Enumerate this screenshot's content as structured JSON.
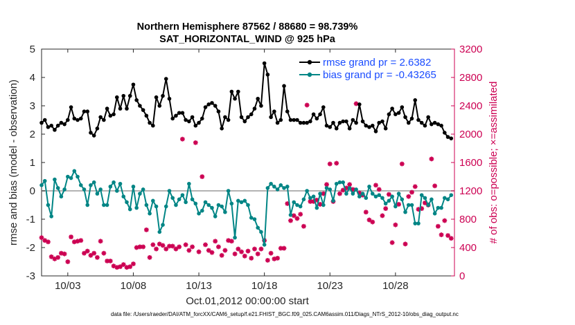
{
  "chart_data": {
    "type": "line",
    "title_line1": "Northern Hemisphere 87562 / 88680 = 98.739%",
    "title_line2": "SAT_HORIZONTAL_WIND @ 925 hPa",
    "xlabel": "Oct.01,2012 00:00:00 start",
    "ylabel_left": "rmse and bias (model - observation)",
    "ylabel_right": "# of obs: o=possible; ×=assimilated",
    "footer": "data file: /Users/raeder/DAI/ATM_forcXX/CAM6_setup/f.e21.FHIST_BGC.f09_025.CAM6assim.011/Diags_NTrS_2012-10/obs_diag_output.nc",
    "x_range": [
      1,
      32.5
    ],
    "x_ticks": [
      3,
      8,
      13,
      18,
      23,
      28
    ],
    "x_tick_labels": [
      "10/03",
      "10/08",
      "10/13",
      "10/18",
      "10/23",
      "10/28"
    ],
    "ylim_left": [
      -3,
      5
    ],
    "y_ticks_left": [
      -3,
      -2,
      -1,
      0,
      1,
      2,
      3,
      4,
      5
    ],
    "ylim_right": [
      0,
      3200
    ],
    "y_ticks_right": [
      0,
      400,
      800,
      1200,
      1600,
      2000,
      2400,
      2800,
      3200
    ],
    "legend": [
      {
        "name": "rmse grand pr = 2.6382"
      },
      {
        "name": "bias grand pr = -0.43265"
      }
    ],
    "x": [
      1.0,
      1.25,
      1.5,
      1.75,
      2.0,
      2.25,
      2.5,
      2.75,
      3.0,
      3.25,
      3.5,
      3.75,
      4.0,
      4.25,
      4.5,
      4.75,
      5.0,
      5.25,
      5.5,
      5.75,
      6.0,
      6.25,
      6.5,
      6.75,
      7.0,
      7.25,
      7.5,
      7.75,
      8.0,
      8.25,
      8.5,
      8.75,
      9.0,
      9.25,
      9.5,
      9.75,
      10.0,
      10.25,
      10.5,
      10.75,
      11.0,
      11.25,
      11.5,
      11.75,
      12.0,
      12.25,
      12.5,
      12.75,
      13.0,
      13.25,
      13.5,
      13.75,
      14.0,
      14.25,
      14.5,
      14.75,
      15.0,
      15.25,
      15.5,
      15.75,
      16.0,
      16.25,
      16.5,
      16.75,
      17.0,
      17.25,
      17.5,
      17.75,
      18.0,
      18.25,
      18.5,
      18.75,
      19.0,
      19.25,
      19.5,
      19.75,
      20.0,
      20.25,
      20.5,
      20.75,
      21.0,
      21.25,
      21.5,
      21.75,
      22.0,
      22.25,
      22.5,
      22.75,
      23.0,
      23.25,
      23.5,
      23.75,
      24.0,
      24.25,
      24.5,
      24.75,
      25.0,
      25.25,
      25.5,
      25.75,
      26.0,
      26.25,
      26.5,
      26.75,
      27.0,
      27.25,
      27.5,
      27.75,
      28.0,
      28.25,
      28.5,
      28.75,
      29.0,
      29.25,
      29.5,
      29.75,
      30.0,
      30.25,
      30.5,
      30.75,
      31.0,
      31.25,
      31.5,
      31.75,
      32.0,
      32.25
    ],
    "series": [
      {
        "name": "rmse",
        "color": "#000000",
        "values": [
          2.4,
          2.5,
          2.25,
          2.3,
          2.15,
          2.3,
          2.4,
          2.35,
          2.5,
          2.95,
          2.55,
          2.5,
          2.55,
          2.8,
          2.8,
          2.05,
          1.95,
          2.2,
          2.6,
          2.5,
          2.9,
          2.65,
          2.7,
          3.3,
          2.9,
          3.35,
          2.9,
          3.35,
          3.75,
          3.2,
          3.0,
          2.85,
          2.65,
          2.4,
          2.3,
          3.3,
          3.0,
          3.35,
          3.95,
          3.25,
          2.55,
          2.65,
          2.75,
          2.75,
          2.5,
          2.45,
          2.6,
          2.3,
          2.4,
          2.55,
          2.95,
          3.05,
          3.1,
          3.0,
          2.8,
          2.2,
          2.6,
          2.5,
          3.5,
          3.25,
          3.5,
          2.6,
          2.45,
          2.6,
          2.7,
          2.9,
          3.25,
          3.0,
          4.5,
          4.1,
          2.6,
          2.8,
          2.4,
          2.5,
          3.7,
          2.8,
          2.5,
          2.5,
          2.5,
          2.4,
          2.4,
          2.4,
          2.45,
          2.7,
          2.55,
          2.7,
          2.95,
          2.3,
          2.25,
          2.4,
          2.2,
          2.4,
          2.45,
          2.45,
          2.2,
          2.5,
          2.4,
          3.05,
          2.45,
          2.3,
          2.25,
          2.3,
          2.1,
          2.4,
          2.45,
          2.2,
          2.7,
          2.9,
          2.7,
          2.75,
          2.95,
          2.6,
          2.4,
          2.55,
          3.2,
          2.5,
          2.4,
          2.3,
          2.6,
          2.35,
          2.4,
          2.35,
          2.3,
          2.05,
          1.9,
          1.85
        ]
      },
      {
        "name": "bias",
        "color": "#008585",
        "values": [
          0.2,
          0.35,
          -0.5,
          -0.9,
          0.4,
          0.1,
          -0.2,
          0.05,
          0.5,
          0.45,
          0.7,
          0.5,
          0.2,
          0.05,
          -0.5,
          0.2,
          0.3,
          -0.1,
          0.05,
          -0.5,
          -0.5,
          0.15,
          0.3,
          0.0,
          0.25,
          -0.2,
          -0.4,
          -0.65,
          0.15,
          -0.6,
          -0.1,
          0.05,
          -0.5,
          -0.8,
          -0.35,
          -0.55,
          -1.45,
          -1.2,
          -0.55,
          0.0,
          -0.25,
          -0.5,
          -0.3,
          -0.15,
          -0.4,
          0.25,
          -0.3,
          -0.45,
          -0.8,
          -0.7,
          -0.4,
          -0.5,
          -0.6,
          -0.9,
          -0.5,
          -0.55,
          -0.75,
          0.0,
          -0.45,
          -1.65,
          -0.35,
          -0.4,
          -0.35,
          -0.5,
          -0.95,
          -1.0,
          -1.3,
          -1.45,
          -1.9,
          0.1,
          0.25,
          0.15,
          0.05,
          0.2,
          0.1,
          0.15,
          -0.85,
          -0.4,
          -0.5,
          -0.55,
          -0.3,
          0.0,
          -0.25,
          -0.2,
          -0.6,
          -0.1,
          -0.5,
          0.1,
          0.05,
          -0.35,
          0.25,
          0.3,
          0.3,
          -0.1,
          0.1,
          -0.1,
          0.05,
          -0.2,
          -0.1,
          -0.25,
          0.15,
          -0.1,
          -0.2,
          -0.15,
          -0.25,
          -0.45,
          -0.35,
          -0.2,
          -0.55,
          -0.1,
          -0.3,
          -0.75,
          -0.5,
          -0.5,
          -1.15,
          -1.15,
          -0.15,
          -0.25,
          -0.5,
          -0.3,
          -0.8,
          -0.6,
          -0.6,
          -0.25,
          -0.3,
          -0.15
        ]
      },
      {
        "name": "obs_counts",
        "color": "#cc0052",
        "values": [
          540,
          500,
          480,
          270,
          240,
          260,
          320,
          310,
          200,
          550,
          480,
          490,
          500,
          320,
          350,
          290,
          320,
          260,
          490,
          320,
          210,
          210,
          140,
          120,
          130,
          160,
          120,
          130,
          170,
          400,
          410,
          410,
          650,
          260,
          440,
          380,
          450,
          430,
          380,
          420,
          420,
          380,
          410,
          1930,
          440,
          360,
          410,
          1880,
          340,
          1400,
          440,
          360,
          330,
          490,
          410,
          290,
          360,
          500,
          490,
          310,
          380,
          340,
          280,
          350,
          250,
          380,
          310,
          380,
          500,
          220,
          320,
          240,
          250,
          390,
          390,
          1020,
          780,
          850,
          810,
          870,
          700,
          2410,
          1050,
          1050,
          1070,
          1010,
          1160,
          1290,
          1580,
          1050,
          1590,
          1160,
          1210,
          1240,
          1290,
          1220,
          2430,
          1170,
          1140,
          900,
          790,
          760,
          1280,
          1220,
          850,
          950,
          1150,
          470,
          720,
          1010,
          1580,
          450,
          1120,
          1180,
          1260,
          940,
          950,
          1030,
          1000,
          1650,
          1270,
          700,
          580,
          780,
          570,
          530
        ]
      }
    ]
  }
}
